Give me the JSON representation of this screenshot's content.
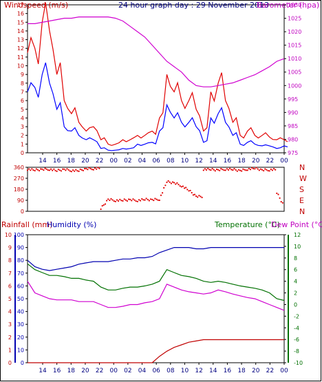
{
  "title": "24 hour graph day : 29 November 2013",
  "colors": {
    "wind": "#e00000",
    "gust": "#0000ff",
    "baro": "#d000d0",
    "rain": "#c00000",
    "hum": "#0000b0",
    "temp": "#007000",
    "dew": "#d000d0",
    "frame": "#000000"
  },
  "x_ticks": [
    "14",
    "16",
    "18",
    "20",
    "22",
    "00",
    "02",
    "04",
    "06",
    "08",
    "10",
    "12",
    "14",
    "16",
    "18",
    "20",
    "22",
    "00"
  ],
  "chart_data": [
    {
      "type": "line",
      "ylabel": "Windspeed (m/s)",
      "y2label": "Barometer (hpa)",
      "ylim": [
        0,
        17
      ],
      "y_ticks": [
        "0",
        "1",
        "2",
        "3",
        "4",
        "5",
        "6",
        "7",
        "8",
        "9",
        "10",
        "11",
        "12",
        "13",
        "14",
        "15",
        "16",
        "17"
      ],
      "y2lim": [
        975,
        1030
      ],
      "y2_ticks": [
        "975",
        "980",
        "985",
        "990",
        "995",
        "1000",
        "1005",
        "1010",
        "1015",
        "1020",
        "1025",
        "1030"
      ],
      "grid": false,
      "x": [
        "13:00",
        "14:00",
        "15:00",
        "16:00",
        "17:00",
        "18:00",
        "19:00",
        "20:00",
        "21:00",
        "22:00",
        "23:00",
        "00:00",
        "01:00",
        "02:00",
        "03:00",
        "04:00",
        "05:00",
        "06:00",
        "07:00",
        "08:00",
        "09:00",
        "10:00",
        "11:00",
        "12:00",
        "13:00",
        "14:00",
        "15:00",
        "16:00",
        "17:00",
        "18:00",
        "19:00",
        "20:00",
        "21:00",
        "22:00",
        "23:00",
        "00:00"
      ],
      "series": [
        {
          "name": "Windspeed (m/s)",
          "axis": "left",
          "values": [
            11.5,
            12,
            15,
            14,
            9,
            6,
            4.5,
            3.5,
            2.5,
            3,
            1.5,
            1,
            1,
            1.5,
            1.5,
            2,
            2,
            2.5,
            4,
            9,
            7,
            6,
            6,
            5,
            2.5,
            7,
            8,
            6,
            3.5,
            2,
            2.5,
            2,
            2,
            1.8,
            1.5,
            1.5
          ]
        },
        {
          "name": "Gust (m/s)",
          "axis": "left",
          "values": [
            7,
            7.5,
            9,
            8,
            5,
            3,
            2.5,
            2,
            1.5,
            1.5,
            0.5,
            0.3,
            0.3,
            0.5,
            0.5,
            1,
            1,
            1.2,
            2.5,
            5.5,
            4,
            3.5,
            3.5,
            3,
            1.2,
            4,
            4.5,
            3.5,
            2,
            1,
            1.2,
            1,
            0.8,
            0.8,
            0.5,
            0.8
          ]
        },
        {
          "name": "Barometer (hpa)",
          "axis": "right",
          "values": [
            1023,
            1023,
            1023.5,
            1024,
            1024.5,
            1025,
            1025,
            1025.5,
            1025.5,
            1025.5,
            1025.5,
            1025.5,
            1025,
            1024,
            1022,
            1020,
            1018,
            1015,
            1012,
            1009,
            1007,
            1005,
            1002,
            1000,
            999.5,
            999.5,
            1000,
            1000.5,
            1001,
            1002,
            1003,
            1004,
            1005.5,
            1007,
            1009,
            1010
          ]
        }
      ]
    },
    {
      "type": "scatter",
      "ylabel": "Wind direction",
      "ylim": [
        0,
        360
      ],
      "y_ticks": [
        "0",
        "90",
        "180",
        "270",
        "360"
      ],
      "compass_labels": [
        "N",
        "W",
        "S",
        "E",
        "N"
      ],
      "x": [
        "13:00",
        "14:00",
        "15:00",
        "16:00",
        "17:00",
        "18:00",
        "19:00",
        "20:00",
        "21:00",
        "22:00",
        "23:00",
        "00:00",
        "01:00",
        "02:00",
        "03:00",
        "04:00",
        "05:00",
        "06:00",
        "07:00",
        "08:00",
        "09:00",
        "10:00",
        "11:00",
        "12:00",
        "13:00",
        "14:00",
        "15:00",
        "16:00",
        "17:00",
        "18:00",
        "19:00",
        "20:00",
        "21:00",
        "22:00",
        "23:00",
        "00:00"
      ],
      "series": [
        {
          "name": "Direction",
          "values": [
            345,
            335,
            340,
            345,
            330,
            340,
            335,
            330,
            345,
            350,
            20,
            95,
            90,
            88,
            92,
            90,
            95,
            92,
            100,
            240,
            230,
            210,
            170,
            120,
            345,
            340,
            335,
            345,
            340,
            330,
            345,
            350,
            335,
            340,
            150,
            40
          ]
        }
      ]
    },
    {
      "type": "line",
      "ylabel": "Rainfall (mm)",
      "ylabel2": "Humidity (%)",
      "y2label": "Temperature (°C)",
      "y2label2": "Dew Point (°C)",
      "ylim": [
        0,
        10
      ],
      "y_ticks": [
        "0",
        "1",
        "2",
        "3",
        "4",
        "5",
        "6",
        "7",
        "8",
        "9",
        "10"
      ],
      "hum_lim": [
        0,
        100
      ],
      "hum_ticks": [
        "0",
        "10",
        "20",
        "30",
        "40",
        "50",
        "60",
        "70",
        "80",
        "90",
        "100"
      ],
      "y2lim": [
        -10,
        12
      ],
      "y2_ticks": [
        "-10",
        "-8",
        "-6",
        "-4",
        "-2",
        "0",
        "2",
        "4",
        "6",
        "8",
        "10",
        "12"
      ],
      "grid": false,
      "x": [
        "13:00",
        "14:00",
        "15:00",
        "16:00",
        "17:00",
        "18:00",
        "19:00",
        "20:00",
        "21:00",
        "22:00",
        "23:00",
        "00:00",
        "01:00",
        "02:00",
        "03:00",
        "04:00",
        "05:00",
        "06:00",
        "07:00",
        "08:00",
        "09:00",
        "10:00",
        "11:00",
        "12:00",
        "13:00",
        "14:00",
        "15:00",
        "16:00",
        "17:00",
        "18:00",
        "19:00",
        "20:00",
        "21:00",
        "22:00",
        "23:00",
        "00:00"
      ],
      "series": [
        {
          "name": "Rainfall (mm)",
          "axis": "left",
          "values": [
            0,
            0,
            0,
            0,
            0,
            0,
            0,
            0,
            0,
            0,
            0,
            0,
            0,
            0,
            0,
            0,
            0,
            0,
            0.5,
            0.9,
            1.2,
            1.4,
            1.6,
            1.7,
            1.8,
            1.8,
            1.8,
            1.8,
            1.8,
            1.8,
            1.8,
            1.8,
            1.8,
            1.8,
            1.8,
            1.8
          ]
        },
        {
          "name": "Humidity (%)",
          "axis": "hum",
          "values": [
            80,
            75,
            73,
            72,
            73,
            74,
            75,
            77,
            78,
            79,
            79,
            79,
            80,
            81,
            81,
            82,
            82,
            83,
            86,
            88,
            90,
            90,
            90,
            89,
            89,
            90,
            90,
            90,
            90,
            90,
            90,
            90,
            90,
            90,
            90,
            90
          ]
        },
        {
          "name": "Temperature (°C)",
          "axis": "right",
          "values": [
            7,
            6,
            5.5,
            5,
            5,
            4.8,
            4.5,
            4.5,
            4.2,
            4,
            3,
            2.5,
            2.5,
            2.8,
            3,
            3,
            3.2,
            3.5,
            4,
            6,
            5.5,
            5,
            4.8,
            4.5,
            4,
            3.8,
            4,
            3.8,
            3.5,
            3.2,
            3,
            2.8,
            2.5,
            2,
            1,
            0.7
          ]
        },
        {
          "name": "Dew Point (°C)",
          "axis": "right",
          "values": [
            4,
            2,
            1.5,
            1,
            0.8,
            0.8,
            0.8,
            0.5,
            0.5,
            0.5,
            0,
            -0.5,
            -0.5,
            -0.3,
            0,
            0,
            0.3,
            0.5,
            1,
            3.5,
            3,
            2.5,
            2.2,
            2,
            1.8,
            2,
            2.5,
            2.2,
            1.8,
            1.5,
            1.2,
            1,
            0.5,
            0,
            -0.5,
            -1
          ]
        }
      ]
    }
  ]
}
